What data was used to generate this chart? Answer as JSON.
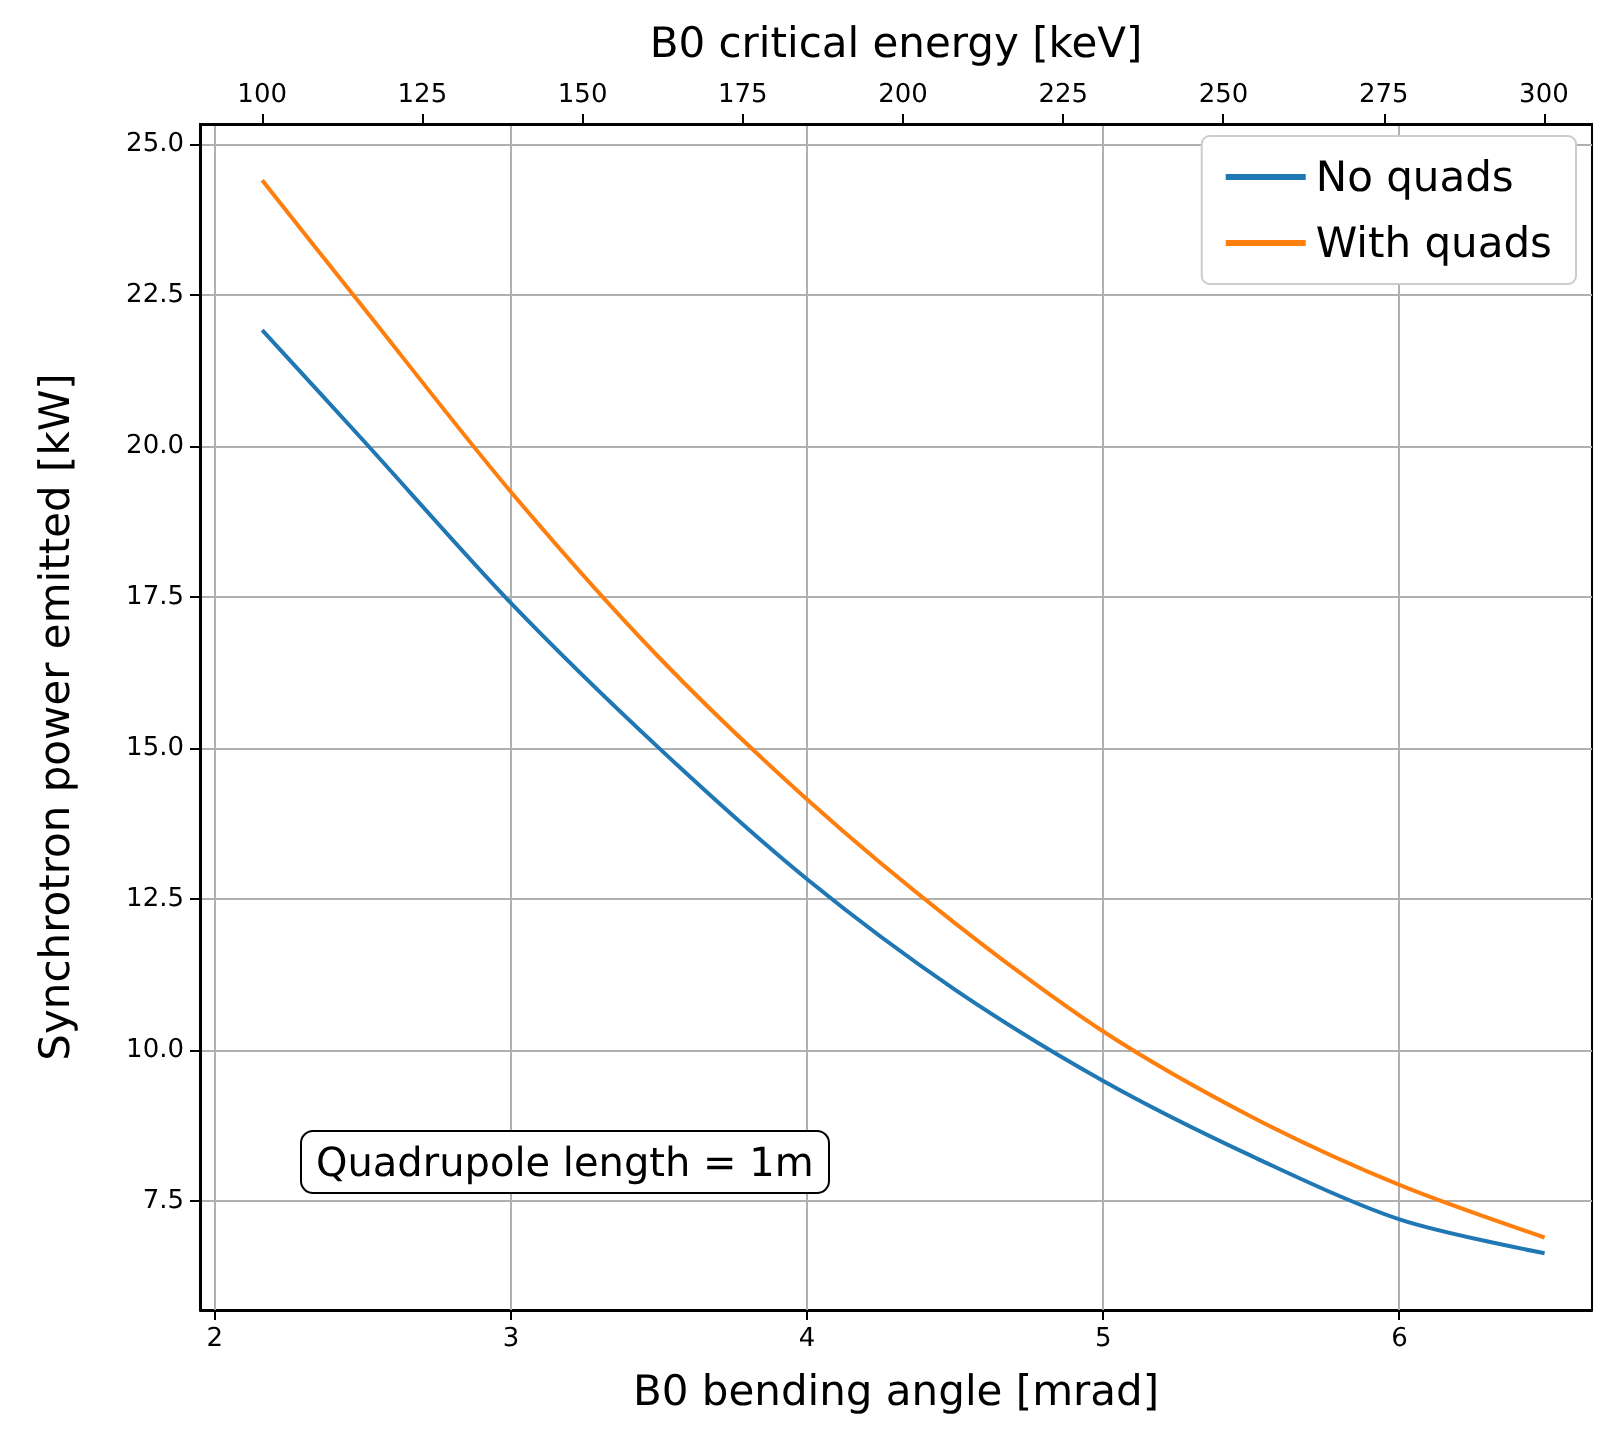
{
  "chart_data": {
    "type": "line",
    "xlabel": "B0 bending angle [mrad]",
    "ylabel": "Synchrotron power emitted [kW]",
    "x2label": "B0 critical energy [keV]",
    "x": [
      2.16,
      2.5,
      3,
      3.5,
      4,
      4.5,
      5,
      5.5,
      6,
      6.49
    ],
    "series": [
      {
        "name": "No quads",
        "color": "#1f77b4",
        "values": [
          21.92,
          20.1,
          17.4,
          15.0,
          12.83,
          11.0,
          9.49,
          8.25,
          7.2,
          6.64
        ]
      },
      {
        "name": "With quads",
        "color": "#ff7f0e",
        "values": [
          24.4,
          22.3,
          19.24,
          16.5,
          14.15,
          12.1,
          10.31,
          8.9,
          7.77,
          6.9
        ]
      }
    ],
    "xlim": [
      1.95,
      6.65
    ],
    "xticks": [
      2,
      3,
      4,
      5,
      6
    ],
    "x2lim": [
      90.3,
      307.5
    ],
    "x2ticks": [
      100,
      125,
      150,
      175,
      200,
      225,
      250,
      275,
      300
    ],
    "ylim": [
      5.7,
      25.33
    ],
    "yticks": [
      {
        "value": 7.5,
        "label": "7.5"
      },
      {
        "value": 10,
        "label": "10.0"
      },
      {
        "value": 12.5,
        "label": "12.5"
      },
      {
        "value": 15,
        "label": "15.0"
      },
      {
        "value": 17.5,
        "label": "17.5"
      },
      {
        "value": 20,
        "label": "20.0"
      },
      {
        "value": 22.5,
        "label": "22.5"
      },
      {
        "value": 25,
        "label": "25.0"
      }
    ],
    "annotations": [
      "Quadrupole length = 1m"
    ],
    "grid": true,
    "legend": "top right",
    "marker": "none",
    "line_style": "solid"
  }
}
